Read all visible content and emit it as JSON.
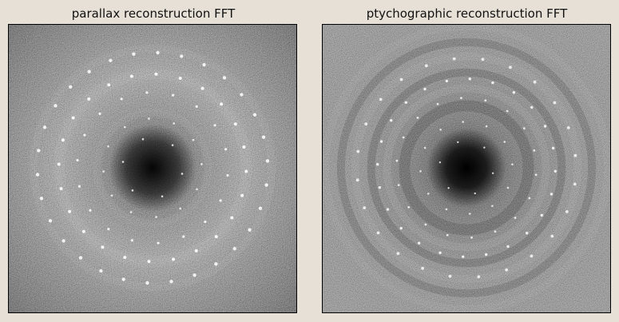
{
  "panels": [
    {
      "title": "parallax reconstruction FFT",
      "image": "fft-diffractogram-parallax"
    },
    {
      "title": "ptychographic reconstruction FFT",
      "image": "fft-diffractogram-ptychographic"
    }
  ],
  "colors": {
    "background": "#e6e0d6",
    "frame": "#000000"
  }
}
